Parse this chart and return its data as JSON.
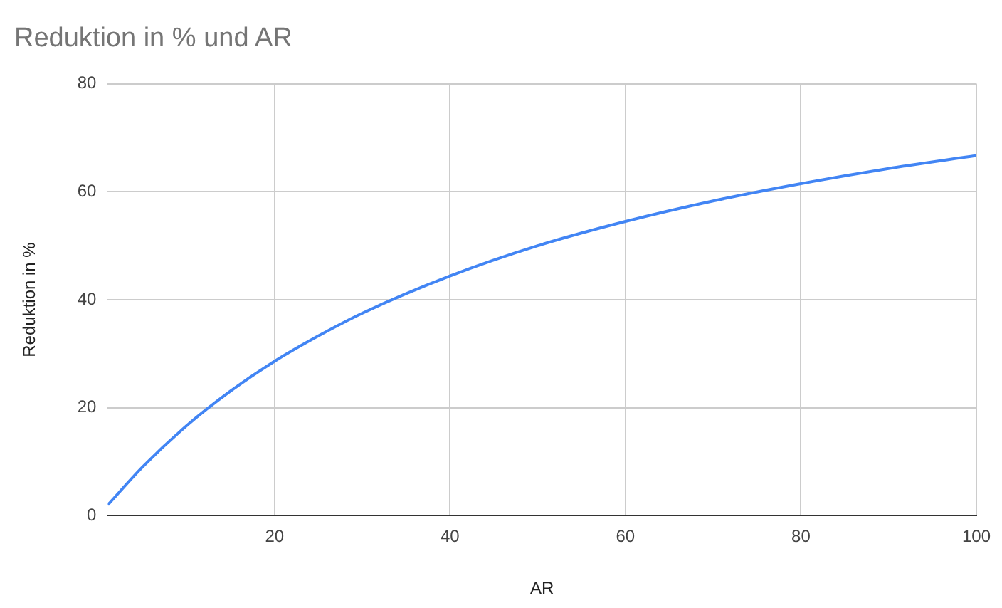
{
  "chart_data": {
    "type": "line",
    "title": "Reduktion in % und AR",
    "xlabel": "AR",
    "ylabel": "Reduktion in %",
    "x": [
      1,
      5,
      10,
      15,
      20,
      25,
      30,
      40,
      50,
      60,
      70,
      80,
      90,
      100
    ],
    "series": [
      {
        "color": "#4285f4",
        "values": [
          2,
          9.1,
          16.7,
          23.1,
          28.6,
          33.3,
          37.5,
          44.4,
          50,
          54.5,
          58.3,
          61.5,
          64.3,
          66.7
        ]
      }
    ],
    "xlim": [
      1,
      100
    ],
    "xticks": [
      20,
      40,
      60,
      80,
      100
    ],
    "ylim": [
      0,
      80
    ],
    "yticks": [
      0,
      20,
      40,
      60,
      80
    ],
    "grid": true,
    "legend": false,
    "marker": "none",
    "line_style": "solid"
  }
}
